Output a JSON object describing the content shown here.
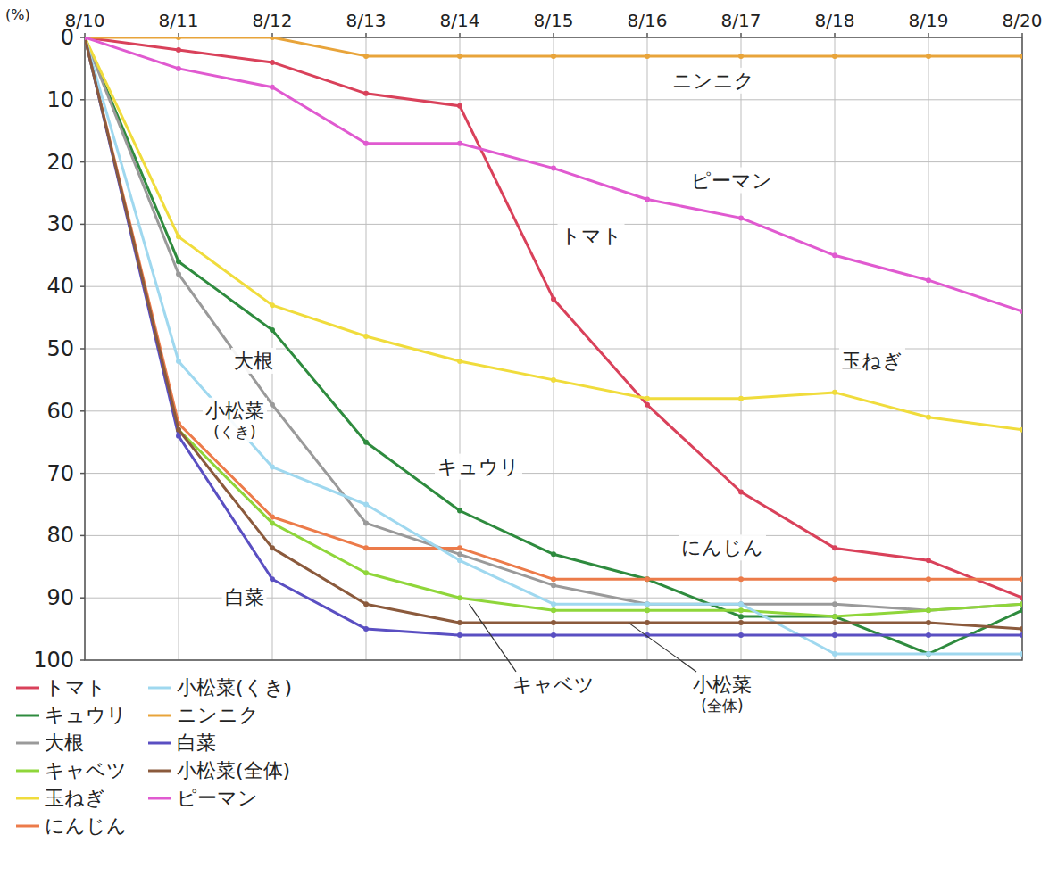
{
  "chart_data": {
    "type": "line",
    "y_label": "(%)",
    "x": [
      10,
      11,
      12,
      13,
      14,
      15,
      16,
      17,
      18,
      19,
      20
    ],
    "xlim": [
      10,
      20
    ],
    "xticks": [
      {
        "value": 10,
        "label": "8/10"
      },
      {
        "value": 11,
        "label": "8/11"
      },
      {
        "value": 12,
        "label": "8/12"
      },
      {
        "value": 13,
        "label": "8/13"
      },
      {
        "value": 14,
        "label": "8/14"
      },
      {
        "value": 15,
        "label": "8/15"
      },
      {
        "value": 16,
        "label": "8/16"
      },
      {
        "value": 17,
        "label": "8/17"
      },
      {
        "value": 18,
        "label": "8/18"
      },
      {
        "value": 19,
        "label": "8/19"
      },
      {
        "value": 20,
        "label": "8/20"
      }
    ],
    "ylim": [
      0,
      100
    ],
    "yticks": [
      0,
      10,
      20,
      30,
      40,
      50,
      60,
      70,
      80,
      90,
      100
    ],
    "grid": true,
    "legend": "bottom-left",
    "marker": "circle",
    "series": [
      {
        "name": "トマト",
        "color": "#d9415a",
        "values": [
          0,
          2,
          4,
          9,
          11,
          42,
          59,
          73,
          82,
          84,
          90
        ]
      },
      {
        "name": "キュウリ",
        "color": "#2e8b3e",
        "values": [
          0,
          36,
          47,
          65,
          76,
          83,
          87,
          93,
          93,
          99,
          92
        ]
      },
      {
        "name": "大根",
        "color": "#9a9a9a",
        "values": [
          0,
          38,
          59,
          78,
          83,
          88,
          91,
          91,
          91,
          92,
          91
        ]
      },
      {
        "name": "キャベツ",
        "color": "#8fd63a",
        "values": [
          0,
          63,
          78,
          86,
          90,
          92,
          92,
          92,
          93,
          92,
          91
        ]
      },
      {
        "name": "玉ねぎ",
        "color": "#f0dc3c",
        "values": [
          0,
          32,
          43,
          48,
          52,
          55,
          58,
          58,
          57,
          61,
          63
        ]
      },
      {
        "name": "にんじん",
        "color": "#ec7b4a",
        "values": [
          0,
          62,
          77,
          82,
          82,
          87,
          87,
          87,
          87,
          87,
          87
        ]
      },
      {
        "name": "小松菜(くき)",
        "color": "#9fd8ef",
        "values": [
          0,
          52,
          69,
          75,
          84,
          91,
          91,
          91,
          99,
          99,
          99
        ]
      },
      {
        "name": "ニンニク",
        "color": "#e8a43a",
        "values": [
          0,
          0,
          0,
          3,
          3,
          3,
          3,
          3,
          3,
          3,
          3
        ]
      },
      {
        "name": "白菜",
        "color": "#5a4fc2",
        "values": [
          0,
          64,
          87,
          95,
          96,
          96,
          96,
          96,
          96,
          96,
          96
        ]
      },
      {
        "name": "小松菜(全体)",
        "color": "#8b5a3c",
        "values": [
          0,
          63,
          82,
          91,
          94,
          94,
          94,
          94,
          94,
          94,
          95
        ]
      },
      {
        "name": "ピーマン",
        "color": "#e05ad0",
        "values": [
          0,
          5,
          8,
          17,
          17,
          21,
          26,
          29,
          35,
          39,
          44
        ]
      }
    ],
    "annotations": [
      {
        "text": "ニンニク",
        "x": 16.7,
        "y": 8
      },
      {
        "text": "ピーマン",
        "x": 16.9,
        "y": 24
      },
      {
        "text": "トマト",
        "x": 15.4,
        "y": 33
      },
      {
        "text": "玉ねぎ",
        "x": 18.4,
        "y": 53
      },
      {
        "text": "大根",
        "x": 11.8,
        "y": 53
      },
      {
        "text": "小松菜(くき)",
        "x": 11.6,
        "y": 61
      },
      {
        "text": "キュウリ",
        "x": 14.2,
        "y": 70
      },
      {
        "text": "にんじん",
        "x": 16.8,
        "y": 83
      },
      {
        "text": "白菜",
        "x": 11.7,
        "y": 91
      },
      {
        "text": "キャベツ",
        "x": 15.0,
        "y": 105,
        "arrow_x": 14.1,
        "arrow_y": 91
      },
      {
        "text": "小松菜(全体)",
        "x": 16.8,
        "y": 105,
        "arrow_x": 15.8,
        "arrow_y": 94
      }
    ]
  }
}
